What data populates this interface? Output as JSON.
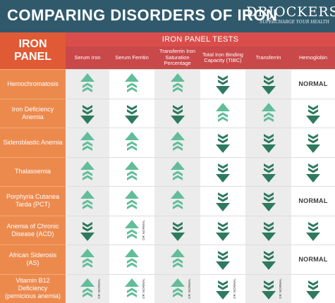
{
  "header": {
    "title": "COMPARING DISORDERS OF IRON",
    "brand_name": "DRJOCKERS",
    "brand_tag": "SUPERCHARGE YOUR HEALTH"
  },
  "table": {
    "corner_line1": "IRON",
    "corner_line2": "PANEL",
    "group_header": "IRON PANEL TESTS",
    "columns": [
      "Serum Iron",
      "Serum Ferritin",
      "Transferrin Iron Saturation Percentage",
      "Total Iron Binding Capacity (TIBC)",
      "Transferrin",
      "Hemoglobin"
    ],
    "rows": [
      {
        "label": "Hemochromatosis",
        "cells": [
          "up",
          "up",
          "up",
          "down",
          "down",
          "NORMAL"
        ]
      },
      {
        "label": "Iron Deficiency Anemia",
        "cells": [
          "down",
          "down",
          "down",
          "up",
          "up",
          "down"
        ]
      },
      {
        "label": "Sideroblastic Anemia",
        "cells": [
          "up",
          "up",
          "up",
          "down",
          "down",
          "down"
        ]
      },
      {
        "label": "Thalassemia",
        "cells": [
          "up",
          "up",
          "up",
          "down",
          "down",
          "down"
        ]
      },
      {
        "label": "Porphyria Cutanea Tarda (PCT)",
        "cells": [
          "up",
          "up",
          "up",
          "down",
          "down",
          "NORMAL"
        ]
      },
      {
        "label": "Anemia of Chronic Disease (ACD)",
        "cells": [
          "down",
          "up+normal",
          "down",
          "down",
          "down",
          "down"
        ]
      },
      {
        "label": "African Siderosis (AS)",
        "cells": [
          "up",
          "up",
          "up",
          "down",
          "down",
          "NORMAL"
        ]
      },
      {
        "label": "Vitamin B12 Deficiency (pernicious anemia)",
        "cells": [
          "up+normal",
          "up+normal",
          "up+normal",
          "down+normal",
          "down+normal",
          "down"
        ]
      }
    ],
    "normal_label": "NORMAL",
    "or_normal_label": "OR NORMAL"
  },
  "colors": {
    "header_bg": "#305a6c",
    "row_label_bg": "#ec8a4e",
    "column_header_bg": "#c9484a",
    "up_arrow": "#62bd9a",
    "down_arrow": "#2e7a5e"
  }
}
